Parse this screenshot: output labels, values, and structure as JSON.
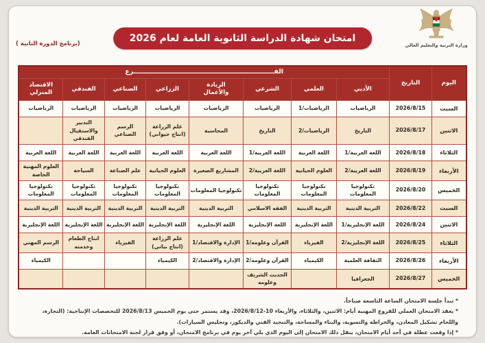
{
  "page": {
    "program_note": "(برنامج الدورة الثانية )",
    "title": "امتحان شهادة الدراسة الثانوية العامة لعام 2026",
    "ministry": "وزارة التربية والتعليم العالي"
  },
  "colors": {
    "title_red": "#b2262e",
    "header_red": "#a52f28",
    "border_red": "#b24b40",
    "row_beige": "#f4e5cb",
    "row_white": "#fffef8"
  },
  "table": {
    "header": {
      "day": "اليوم",
      "date": "التاريخ",
      "branch_group": "الفـــــــــــــــــــــــــــــــــــــــــــــــــــــــــــــــرع",
      "branches": [
        "الأدبي",
        "العلمي",
        "الشرعي",
        "الريادة\nوالأعمال",
        "الزراعي",
        "الصناعي",
        "الفندقي",
        "الاقتصاد\nالمنزلي"
      ]
    },
    "rows": [
      {
        "day": "السبت",
        "date": "2026/8/15",
        "subjects": [
          "الرياضيات",
          "الرياضيات/1",
          "الرياضيات",
          "الرياضيات",
          "الرياضيات",
          "الرياضيات",
          "الرياضيات",
          "الرياضيات"
        ]
      },
      {
        "day": "الاثنين",
        "date": "2026/8/17",
        "subjects": [
          "التاريخ",
          "الرياضيات/2",
          "التاريخ",
          "المحاسبة",
          "علم الزراعة (انتاج حيواني)",
          "الرسم الصناعي",
          "التدبير والاستقبال الفندقي",
          ""
        ]
      },
      {
        "day": "الثلاثاء",
        "date": "2026/8/18",
        "subjects": [
          "اللغة العربية/1",
          "اللغة العربية",
          "اللغة العربية/1",
          "اللغة العربية",
          "اللغة العربية",
          "اللغة العربية",
          "اللغة العربية",
          "اللغة العربية"
        ]
      },
      {
        "day": "الأربعاء",
        "date": "2026/8/19",
        "subjects": [
          "اللغة العربية/2",
          "العلوم الحياتية",
          "اللغة العربية/2",
          "المشاريع الصغيرة",
          "العلوم الحياتية",
          "علم الصناعة",
          "السياحة",
          "العلوم المهنية الخاصة"
        ]
      },
      {
        "day": "الخميس",
        "date": "2026/8/20",
        "subjects": [
          "تكنولوجيا المعلومات",
          "تكنولوجيا المعلومات",
          "تكنولوجيا المعلومات",
          "تكنولوجيا المعلومات",
          "تكنولوجيا المعلومات",
          "تكنولوجيا المعلومات",
          "تكنولوجيا المعلومات",
          "تكنولوجيا المعلومات"
        ]
      },
      {
        "day": "السبت",
        "date": "2026/8/22",
        "subjects": [
          "التربية الدينية",
          "التربية الدينية",
          "الفقه الاسلامي",
          "التربية الدينية",
          "التربية الدينية",
          "التربية الدينية",
          "التربية الدينية",
          "التربية الدينية"
        ]
      },
      {
        "day": "الاثنين",
        "date": "2026/8/24",
        "subjects": [
          "اللغة الإنجليزية/1",
          "اللغة الإنجليزية",
          "اللغة الإنجليزية",
          "اللغة الإنجليزية",
          "اللغة الإنجليزية",
          "اللغة الإنجليزية",
          "اللغة الإنجليزية",
          "اللغة الإنجليزية"
        ]
      },
      {
        "day": "الثلاثاء",
        "date": "2026/8/25",
        "subjects": [
          "اللغة الإنجليزية/2",
          "الفيزياء",
          "القرآن وعلومه/1",
          "الإدارة والاقتصاد/1",
          "علم الزراعة (انتاج نباتي)",
          "الفيزياء",
          "انتاج الطعام وخدمته",
          "الرسم المهني"
        ]
      },
      {
        "day": "الأربعاء",
        "date": "2026/8/26",
        "subjects": [
          "الثقافة العلمية",
          "الكيمياء",
          "القرآن وعلومه/2",
          "الإدارة والاقتصاد/2",
          "الكيمياء",
          "",
          "",
          "الكيمياء"
        ]
      },
      {
        "day": "الخميس",
        "date": "2026/8/27",
        "subjects": [
          "الجغرافيا",
          "",
          "الحديث الشريف وعلومه",
          "",
          "",
          "",
          "",
          ""
        ]
      }
    ]
  },
  "notes": [
    "* تبدأ جلسة الامتحان الساعة التاسعة صباحاً.",
    "* يعقد الامتحان العملي للفروع المهنية أيام: الاثنين، والثلاثاء، والأربعاء 10-2026/8/12، وقد يستمر حتى يوم الخميس 2026/8/13 للتخصصات الإنتاجية: (التجارة، واللحام تشكيل المعادن، والخراطة والتسوية، والبناء والمساحة، والتنجيد الفني والديكور، وتجليس السيارات).",
    "* إذا وقعت عطلة في أحد أيام الامتحان، ينقل ذلك الامتحان إلى اليوم الذي يلي آخر يوم في برنامج الامتحان، أو وفق قرار لجنة الامتحانات العامة."
  ]
}
